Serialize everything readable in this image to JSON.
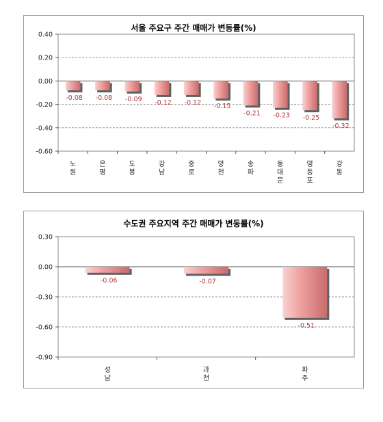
{
  "chart_data": [
    {
      "type": "bar",
      "title": "서울 주요구 주간 매매가 변동률(%)",
      "categories": [
        [
          "노",
          "원"
        ],
        [
          "은",
          "평"
        ],
        [
          "도",
          "봉"
        ],
        [
          "강",
          "남"
        ],
        [
          "중",
          "로"
        ],
        [
          "양",
          "천"
        ],
        [
          "송",
          "파"
        ],
        [
          "동",
          "대",
          "문"
        ],
        [
          "영",
          "등",
          "포"
        ],
        [
          "강",
          "동"
        ]
      ],
      "values": [
        -0.08,
        -0.08,
        -0.09,
        -0.12,
        -0.12,
        -0.15,
        -0.21,
        -0.23,
        -0.25,
        -0.32
      ],
      "value_labels": [
        "-0.08",
        "-0.08",
        "-0.09",
        "-0.12",
        "-0.12",
        "-0.15",
        "-0.21",
        "-0.23",
        "-0.25",
        "-0.32"
      ],
      "yticks": [
        0.4,
        0.2,
        0.0,
        -0.2,
        -0.4,
        -0.6
      ],
      "ytick_labels": [
        "0.40",
        "0.20",
        "0.00",
        "-0.20",
        "-0.40",
        "-0.60"
      ],
      "ylim": [
        -0.6,
        0.4
      ],
      "grid": "horizontal dashed",
      "bar_color": "#f2a6a6"
    },
    {
      "type": "bar",
      "title": "수도권 주요지역 주간 매매가 변동률(%)",
      "categories": [
        [
          "성",
          "남"
        ],
        [
          "과",
          "천"
        ],
        [
          "파",
          "주"
        ]
      ],
      "values": [
        -0.06,
        -0.07,
        -0.51
      ],
      "value_labels": [
        "-0.06",
        "-0.07",
        "-0.51"
      ],
      "yticks": [
        0.3,
        0.0,
        -0.3,
        -0.6,
        -0.9
      ],
      "ytick_labels": [
        "0.30",
        "0.00",
        "-0.30",
        "-0.60",
        "-0.90"
      ],
      "ylim": [
        -0.9,
        0.3
      ],
      "grid": "horizontal dashed",
      "bar_color": "#f2a6a6"
    }
  ]
}
